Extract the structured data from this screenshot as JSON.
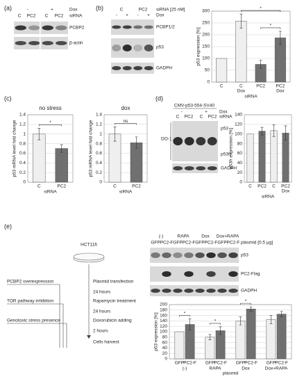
{
  "figure": {
    "a": {
      "label": "(a)",
      "dox": [
        "-",
        "+"
      ],
      "dox_label": "Dox",
      "lanes": [
        "C",
        "PC2",
        "C",
        "PC2"
      ],
      "lanes_label": "siRNA",
      "rows": [
        "PCBP2",
        "β-actin"
      ]
    },
    "b": {
      "label": "(b)",
      "sirna": [
        "C",
        "PC2"
      ],
      "sirna_label": "siRNA [25 nM]",
      "dox": [
        "-",
        "+",
        "-",
        "+"
      ],
      "dox_label": "Dox",
      "rows": [
        "PCBP1/2",
        "p53",
        "GADPH"
      ]
    },
    "c": {
      "label": "(c)"
    },
    "d": {
      "label": "(d)",
      "construct": "CMV-p53-554-SV40",
      "dox": [
        "-",
        "+"
      ],
      "dox_label": "Dox",
      "lanes": [
        "C",
        "PC2",
        "C",
        "PC2"
      ],
      "lanes_label": "siRNA",
      "rows": [
        "p53",
        "p53fr",
        "GADPH"
      ],
      "antibody": "DO-1"
    },
    "e": {
      "label": "(e)",
      "cell_line": "HCT116",
      "conditions": [
        "PCBP2 overexpression",
        "TOR pathway inhibition",
        "Genotoxic stress presence"
      ],
      "steps": [
        "Plasmid transfection",
        "24 hours",
        "Rapamycin treatment",
        "24 hours",
        "Doxorubicin adding",
        "2 hours",
        "Cells harvest"
      ],
      "treatments": [
        "(-)",
        "RAPA",
        "Dox",
        "Dox+RAPA"
      ],
      "lanes": [
        "GFP",
        "PC2-F"
      ],
      "plasmid_label": "plasmid [0.5 µg]",
      "rows": [
        "p53",
        "PC2-Flag",
        "GADPH"
      ]
    }
  },
  "chart_data": [
    {
      "type": "bar",
      "ylabel": "p53 expression [%]",
      "xlabel": "siRNA",
      "categories": [
        "C",
        "C",
        "PC2",
        "PC2"
      ],
      "category_sublabels": [
        null,
        "Dox",
        null,
        "Dox"
      ],
      "values": [
        100,
        258,
        75,
        187
      ],
      "errors": [
        null,
        30,
        18,
        28
      ],
      "colors": [
        "#efefef",
        "#efefef",
        "#707070",
        "#707070"
      ],
      "ylim": [
        0,
        300
      ],
      "yticks": [
        0,
        50,
        100,
        150,
        200,
        250,
        300
      ],
      "grid": true,
      "significance": [
        {
          "label": "*",
          "between": [
            1,
            3
          ]
        },
        {
          "label": "*",
          "between": [
            2,
            3
          ]
        }
      ]
    },
    {
      "type": "bar",
      "title": "no stress",
      "ylabel": "p53 mRNA level fold change",
      "xlabel": "siRNA",
      "categories": [
        "C",
        "PC2"
      ],
      "values": [
        1,
        0.7
      ],
      "errors": [
        0.12,
        0.08
      ],
      "colors": [
        "#efefef",
        "#707070"
      ],
      "ylim": [
        0,
        1.4
      ],
      "yticks": [
        0,
        0.2,
        0.4,
        0.6,
        0.8,
        1,
        1.2,
        1.4
      ],
      "grid": true,
      "significance": [
        {
          "label": "*",
          "between": [
            0,
            1
          ]
        }
      ]
    },
    {
      "type": "bar",
      "title": "dox",
      "ylabel": "p53 mRNA level fold change",
      "xlabel": "siRNA",
      "categories": [
        "C",
        "PC2"
      ],
      "values": [
        1,
        0.82
      ],
      "errors": [
        0.15,
        0.12
      ],
      "colors": [
        "#efefef",
        "#707070"
      ],
      "ylim": [
        0,
        1.4
      ],
      "yticks": [
        0,
        0.2,
        0.4,
        0.6,
        0.8,
        1,
        1.2,
        1.4
      ],
      "grid": true,
      "significance": [
        {
          "label": "ns",
          "between": [
            0,
            1
          ]
        }
      ]
    },
    {
      "type": "bar",
      "ylabel": "p53fr expression [%]",
      "xlabel": "siRNA",
      "categories": [
        "C",
        "PC2",
        "C",
        "PC2"
      ],
      "category_sublabels": [
        null,
        null,
        null,
        "Dox"
      ],
      "values": [
        100,
        106,
        107,
        102
      ],
      "errors": [
        null,
        8,
        12,
        15
      ],
      "colors": [
        "#efefef",
        "#707070",
        "#efefef",
        "#707070"
      ],
      "ylim": [
        0,
        140
      ],
      "yticks": [
        0,
        20,
        40,
        60,
        80,
        100,
        120,
        140
      ],
      "grid": true
    },
    {
      "type": "bar",
      "ylabel": "p53 expression [%]",
      "xlabel": "plasmid",
      "categories": [
        "(-)",
        "RAPA",
        "Dox",
        "Dox+RAPA"
      ],
      "series": [
        {
          "name": "GFP",
          "color": "#efefef",
          "values": [
            100,
            80,
            140,
            145
          ],
          "errors": [
            null,
            10,
            15,
            15
          ]
        },
        {
          "name": "PC2-F",
          "color": "#707070",
          "values": [
            127,
            104,
            184,
            165
          ],
          "errors": [
            20,
            14,
            8,
            10
          ]
        }
      ],
      "ylim": [
        0,
        200
      ],
      "yticks": [
        0,
        20,
        40,
        60,
        80,
        100,
        120,
        140,
        160,
        180,
        200
      ],
      "grid": true,
      "significance": [
        {
          "label": "*",
          "between": [
            0,
            1
          ]
        },
        {
          "label": "*",
          "between": [
            2,
            3
          ]
        },
        {
          "label": "*",
          "between": [
            4,
            5
          ]
        }
      ]
    }
  ]
}
